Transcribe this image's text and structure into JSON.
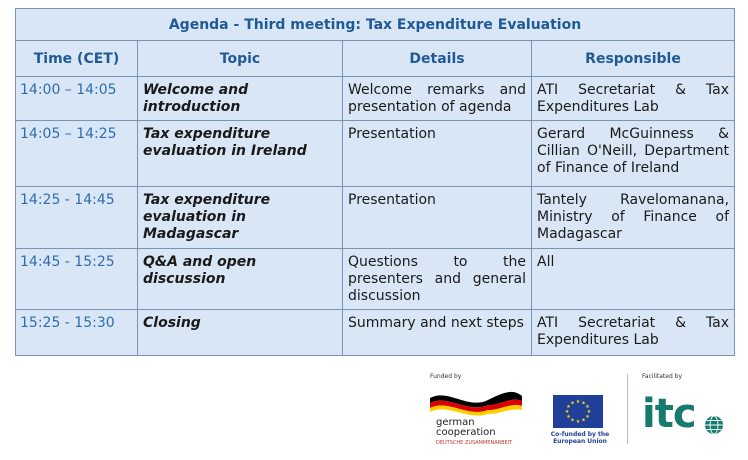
{
  "agenda": {
    "title": "Agenda - Third meeting: Tax Expenditure Evaluation",
    "columns": [
      "Time (CET)",
      "Topic",
      "Details",
      "Responsible"
    ],
    "rows": [
      {
        "time": "14:00 – 14:05",
        "topic": "Welcome and introduction",
        "details": "Welcome remarks and presentation of agenda",
        "responsible": "ATI Secretariat & Tax Expenditures Lab"
      },
      {
        "time": "14:05 – 14:25",
        "topic": "Tax expenditure evaluation in Ireland",
        "details": "Presentation",
        "responsible": "Gerard McGuinness & Cillian O'Neill, Department of Finance of Ireland"
      },
      {
        "time": "14:25 - 14:45",
        "topic": "Tax expenditure evaluation in Madagascar",
        "details": "Presentation",
        "responsible": "Tantely Ravelomanana, Ministry of Finance of Madagascar"
      },
      {
        "time": "14:45 - 15:25",
        "topic": "Q&A and open discussion",
        "details": "Questions to the presenters and general discussion",
        "responsible": "All"
      },
      {
        "time": "15:25 - 15:30",
        "topic": "Closing",
        "details": "Summary and next steps",
        "responsible": "ATI Secretariat & Tax Expenditures Lab"
      }
    ]
  },
  "footer": {
    "funded_by": "Funded by",
    "german_coop_line1": "german",
    "german_coop_line2": "cooperation",
    "german_coop_sub": "DEUTSCHE ZUSAMMENARBEIT",
    "eu_caption": "Co-funded by the European Union",
    "facilitated_by": "Facilitated by",
    "itc_logo": "itc",
    "colors": {
      "accent": "#1f5a96",
      "itc_teal": "#167a6f",
      "eu_blue": "#1f3f99",
      "table_bg": "#d9e6f5"
    }
  }
}
